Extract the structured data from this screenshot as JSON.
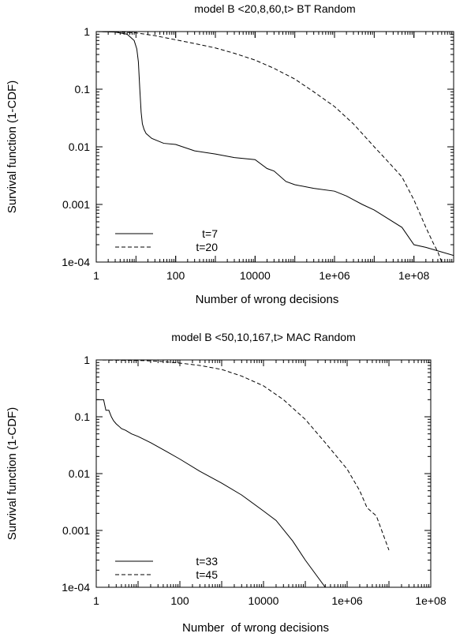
{
  "chart_data": [
    {
      "type": "line",
      "title": "model B <20,8,60,t> BT Random",
      "xlabel": "Number of wrong decisions",
      "ylabel": "Survival function (1-CDF)",
      "xscale": "log",
      "yscale": "log",
      "xlim": [
        1,
        1000000000
      ],
      "ylim": [
        0.0001,
        1
      ],
      "xticks": [
        {
          "value": 1,
          "label": "1"
        },
        {
          "value": 100,
          "label": "100"
        },
        {
          "value": 10000,
          "label": "10000"
        },
        {
          "value": 1000000,
          "label": "1e+06"
        },
        {
          "value": 100000000,
          "label": "1e+08"
        }
      ],
      "yticks": [
        {
          "value": 1,
          "label": "1"
        },
        {
          "value": 0.1,
          "label": "0.1"
        },
        {
          "value": 0.01,
          "label": "0.01"
        },
        {
          "value": 0.001,
          "label": "0.001"
        },
        {
          "value": 0.0001,
          "label": "1e-04"
        }
      ],
      "legend_position": "bottom-left",
      "series": [
        {
          "name": "t=7",
          "dash": "solid",
          "x": [
            1,
            3,
            6,
            9,
            10.5,
            11.5,
            12.5,
            13.5,
            14.5,
            16,
            18,
            25,
            50,
            100,
            300,
            1000,
            3000,
            10000,
            20000,
            30000,
            60000,
            100000,
            300000,
            1000000,
            2000000,
            5000000,
            10000000,
            50000000,
            100000000,
            200000000,
            1000000000
          ],
          "y": [
            1,
            0.98,
            0.9,
            0.7,
            0.5,
            0.3,
            0.1,
            0.04,
            0.025,
            0.02,
            0.017,
            0.014,
            0.0115,
            0.011,
            0.0085,
            0.0075,
            0.0065,
            0.006,
            0.0042,
            0.0038,
            0.0025,
            0.0022,
            0.0019,
            0.0017,
            0.0014,
            0.001,
            0.0008,
            0.0004,
            0.0002,
            0.00018,
            0.00013
          ]
        },
        {
          "name": "t=20",
          "dash": "dashed",
          "x": [
            1,
            3,
            10,
            30,
            100,
            300,
            1000,
            3000,
            10000,
            30000,
            100000,
            300000,
            1000000,
            3000000,
            10000000,
            20000000,
            50000000,
            100000000,
            200000000,
            300000000,
            400000000,
            500000000
          ],
          "y": [
            1,
            0.99,
            0.95,
            0.85,
            0.72,
            0.62,
            0.52,
            0.42,
            0.32,
            0.23,
            0.15,
            0.09,
            0.05,
            0.025,
            0.01,
            0.006,
            0.003,
            0.0012,
            0.0004,
            0.00022,
            0.00015,
            0.0001
          ]
        }
      ]
    },
    {
      "type": "line",
      "title": "model B <50,10,167,t> MAC Random",
      "xlabel": "Number  of wrong decisions",
      "ylabel": "Survival function (1-CDF)",
      "xscale": "log",
      "yscale": "log",
      "xlim": [
        1,
        100000000
      ],
      "ylim": [
        0.0001,
        1
      ],
      "xticks": [
        {
          "value": 1,
          "label": "1"
        },
        {
          "value": 100,
          "label": "100"
        },
        {
          "value": 10000,
          "label": "10000"
        },
        {
          "value": 1000000,
          "label": "1e+06"
        },
        {
          "value": 100000000,
          "label": "1e+08"
        }
      ],
      "yticks": [
        {
          "value": 1,
          "label": "1"
        },
        {
          "value": 0.1,
          "label": "0.1"
        },
        {
          "value": 0.01,
          "label": "0.01"
        },
        {
          "value": 0.001,
          "label": "0.001"
        },
        {
          "value": 0.0001,
          "label": "1e-04"
        }
      ],
      "legend_position": "bottom-left",
      "series": [
        {
          "name": "t=33",
          "dash": "solid",
          "x": [
            1,
            1.5,
            1.7,
            2,
            2.3,
            2.6,
            3,
            3.5,
            4,
            5,
            7,
            10,
            20,
            50,
            100,
            300,
            1000,
            3000,
            10000,
            20000,
            50000,
            100000,
            300000
          ],
          "y": [
            0.2,
            0.2,
            0.13,
            0.13,
            0.1,
            0.085,
            0.075,
            0.068,
            0.062,
            0.058,
            0.05,
            0.045,
            0.035,
            0.024,
            0.018,
            0.011,
            0.0068,
            0.0042,
            0.0022,
            0.0015,
            0.00065,
            0.0003,
            0.0001
          ]
        },
        {
          "name": "t=45",
          "dash": "dashed",
          "x": [
            1,
            10,
            30,
            100,
            300,
            1000,
            3000,
            10000,
            30000,
            100000,
            300000,
            1000000,
            2000000,
            3000000,
            5000000,
            10000000
          ],
          "y": [
            1,
            0.98,
            0.95,
            0.88,
            0.8,
            0.68,
            0.52,
            0.35,
            0.2,
            0.09,
            0.035,
            0.012,
            0.005,
            0.0025,
            0.0018,
            0.00045
          ]
        }
      ]
    }
  ]
}
